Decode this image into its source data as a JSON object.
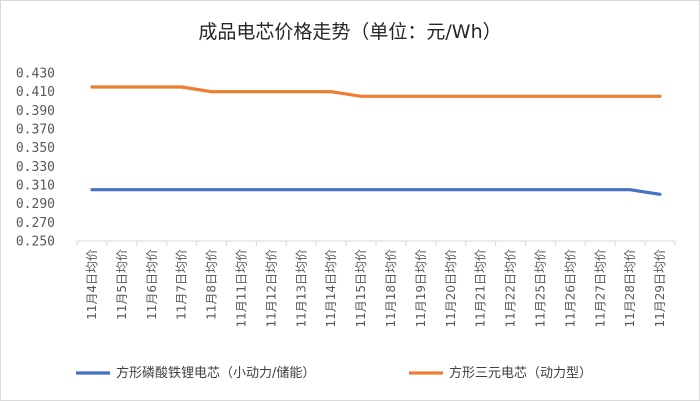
{
  "chart_data": {
    "type": "line",
    "title": "成品电芯价格走势（单位：元/Wh）",
    "xlabel": "",
    "ylabel": "",
    "categories": [
      "11月4日均价",
      "11月5日均价",
      "11月6日均价",
      "11月7日均价",
      "11月8日均价",
      "11月11日均价",
      "11月12日均价",
      "11月13日均价",
      "11月14日均价",
      "11月15日均价",
      "11月18日均价",
      "11月19日均价",
      "11月20日均价",
      "11月21日均价",
      "11月22日均价",
      "11月25日均价",
      "11月26日均价",
      "11月27日均价",
      "11月28日均价",
      "11月29日均价"
    ],
    "y_ticks": [
      "0.430",
      "0.410",
      "0.390",
      "0.370",
      "0.350",
      "0.330",
      "0.310",
      "0.290",
      "0.270",
      "0.250"
    ],
    "ylim": [
      0.25,
      0.43
    ],
    "grid": false,
    "legend_position": "bottom",
    "series": [
      {
        "name": "方形磷酸铁锂电芯（小动力/储能）",
        "color": "#4472C4",
        "values": [
          0.305,
          0.305,
          0.305,
          0.305,
          0.305,
          0.305,
          0.305,
          0.305,
          0.305,
          0.305,
          0.305,
          0.305,
          0.305,
          0.305,
          0.305,
          0.305,
          0.305,
          0.305,
          0.305,
          0.3
        ]
      },
      {
        "name": "方形三元电芯（动力型）",
        "color": "#ED7D31",
        "values": [
          0.415,
          0.415,
          0.415,
          0.415,
          0.41,
          0.41,
          0.41,
          0.41,
          0.41,
          0.405,
          0.405,
          0.405,
          0.405,
          0.405,
          0.405,
          0.405,
          0.405,
          0.405,
          0.405,
          0.405
        ]
      }
    ]
  }
}
